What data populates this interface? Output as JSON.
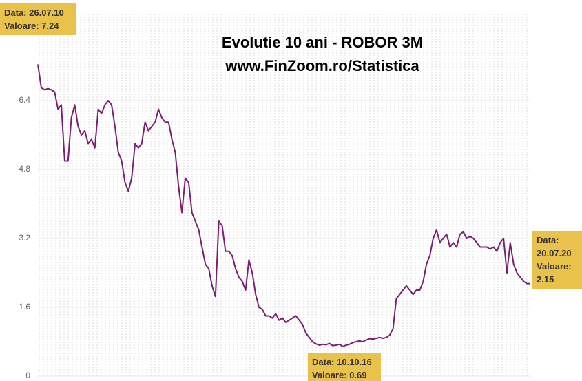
{
  "chart_data": {
    "type": "line",
    "title": "Evolutie 10 ani - ROBOR 3M",
    "subtitle": "www.FinZoom.ro/Statistica",
    "color": "#7a1f6f",
    "ylim": [
      0,
      8.4
    ],
    "yticks": [
      0,
      1.6,
      3.2,
      4.8,
      6.4
    ],
    "grid": true,
    "values": [
      7.24,
      6.7,
      6.65,
      6.68,
      6.65,
      6.6,
      6.2,
      6.3,
      5.0,
      5.0,
      6.0,
      6.3,
      5.8,
      5.6,
      5.7,
      5.4,
      5.5,
      5.3,
      6.2,
      6.1,
      6.3,
      6.4,
      6.3,
      5.8,
      5.2,
      5.0,
      4.5,
      4.3,
      4.6,
      5.4,
      5.3,
      5.4,
      5.9,
      5.7,
      5.8,
      5.9,
      6.2,
      6.0,
      5.9,
      5.9,
      5.5,
      5.2,
      4.4,
      3.8,
      4.6,
      4.5,
      3.8,
      3.6,
      3.4,
      3.0,
      2.6,
      2.5,
      2.1,
      1.85,
      3.6,
      3.5,
      2.9,
      2.9,
      2.8,
      2.5,
      2.3,
      2.2,
      2.0,
      2.7,
      2.4,
      1.9,
      1.6,
      1.55,
      1.4,
      1.4,
      1.35,
      1.45,
      1.3,
      1.35,
      1.25,
      1.3,
      1.35,
      1.4,
      1.3,
      1.2,
      1.0,
      0.9,
      0.8,
      0.75,
      0.72,
      0.74,
      0.73,
      0.76,
      0.71,
      0.72,
      0.74,
      0.69,
      0.72,
      0.74,
      0.78,
      0.8,
      0.82,
      0.8,
      0.84,
      0.87,
      0.86,
      0.88,
      0.9,
      0.88,
      0.9,
      0.95,
      1.1,
      1.8,
      1.9,
      2.0,
      2.1,
      2.0,
      1.9,
      2.0,
      2.0,
      2.2,
      2.6,
      2.8,
      3.2,
      3.4,
      3.1,
      3.2,
      3.3,
      3.0,
      3.1,
      3.0,
      3.3,
      3.35,
      3.2,
      3.25,
      3.2,
      3.1,
      3.0,
      3.0,
      3.0,
      2.95,
      3.0,
      2.9,
      3.1,
      3.2,
      2.4,
      3.1,
      2.6,
      2.4,
      2.3,
      2.2,
      2.15,
      2.15
    ],
    "annotations": [
      {
        "lines": [
          "Data: 26.07.10",
          "Valoare: 7.24"
        ]
      },
      {
        "lines": [
          "Data: 10.10.16",
          "Valoare: 0.69"
        ]
      },
      {
        "lines": [
          "Data:",
          "20.07.20",
          "Valoare:",
          "2.15"
        ]
      }
    ]
  }
}
